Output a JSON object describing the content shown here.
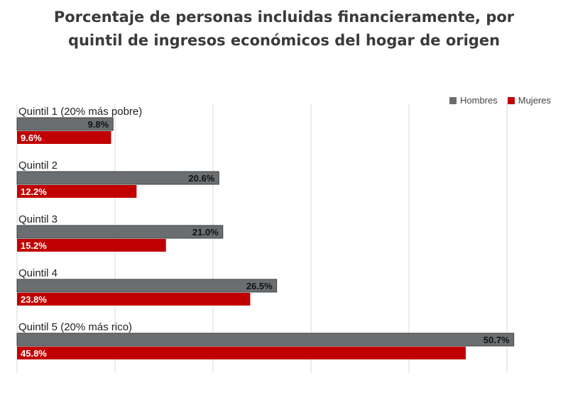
{
  "title_line1": "Porcentaje de personas incluidas financieramente, por",
  "title_line2": "quintil de ingresos económicos del hogar de origen",
  "colors": {
    "hombres": "#6b6e70",
    "mujeres": "#c00000",
    "grid": "#d9d9d9"
  },
  "chart_data": {
    "type": "bar",
    "orientation": "horizontal",
    "title": "Porcentaje de personas incluidas financieramente, por quintil de ingresos económicos del hogar de origen",
    "categories": [
      "Quintil 1 (20% más pobre)",
      "Quintil 2",
      "Quintil 3",
      "Quintil 4",
      "Quintil 5 (20% más rico)"
    ],
    "series": [
      {
        "name": "Hombres",
        "values": [
          9.8,
          20.6,
          21.0,
          26.5,
          50.7
        ],
        "labels": [
          "9.8%",
          "20.6%",
          "21.0%",
          "26.5%",
          "50.7%"
        ]
      },
      {
        "name": "Mujeres",
        "values": [
          9.6,
          12.2,
          15.2,
          23.8,
          45.8
        ],
        "labels": [
          "9.6%",
          "12.2%",
          "15.2%",
          "23.8%",
          "45.8%"
        ]
      }
    ],
    "xlim": [
      0,
      50
    ],
    "grid": true,
    "legend": "top-right",
    "xlabel": "",
    "ylabel": ""
  }
}
